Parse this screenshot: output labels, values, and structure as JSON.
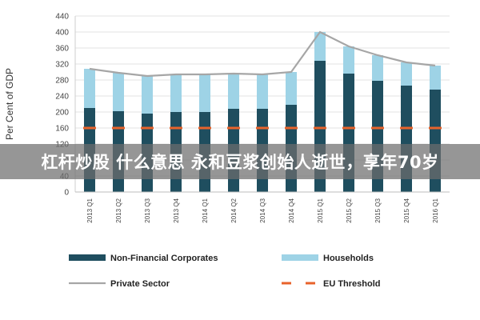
{
  "overlay": {
    "text": "杠杆炒股 什么意思 永和豆浆创始人逝世，享年70岁"
  },
  "chart_data": {
    "type": "bar",
    "stacked": true,
    "ylabel": "Per Cent of GDP",
    "ylim": [
      0,
      440
    ],
    "yticks": [
      0,
      40,
      80,
      120,
      160,
      200,
      240,
      280,
      320,
      360,
      400,
      440
    ],
    "grid": true,
    "legend_position": "bottom",
    "categories": [
      "2013 Q1",
      "2013 Q2",
      "2013 Q3",
      "2013 Q4",
      "2014 Q1",
      "2014 Q2",
      "2014 Q3",
      "2014 Q4",
      "2015 Q1",
      "2015 Q2",
      "2015 Q3",
      "2015 Q4",
      "2016 Q1"
    ],
    "series": [
      {
        "name": "Non-Financial Corporates",
        "kind": "bar",
        "color": "#1f4e5f",
        "values": [
          210,
          202,
          196,
          200,
          200,
          208,
          208,
          218,
          328,
          296,
          278,
          266,
          256
        ]
      },
      {
        "name": "Households",
        "kind": "bar",
        "color": "#9ed3e6",
        "values": [
          98,
          96,
          94,
          94,
          94,
          88,
          86,
          82,
          72,
          68,
          64,
          58,
          60
        ]
      },
      {
        "name": "Private Sector",
        "kind": "line",
        "color": "#a6a6a6",
        "values": [
          308,
          298,
          290,
          294,
          294,
          296,
          294,
          300,
          400,
          364,
          342,
          324,
          316
        ]
      },
      {
        "name": "EU Threshold",
        "kind": "dashed-line",
        "color": "#e8632b",
        "values": [
          160,
          160,
          160,
          160,
          160,
          160,
          160,
          160,
          160,
          160,
          160,
          160,
          160
        ]
      }
    ]
  }
}
